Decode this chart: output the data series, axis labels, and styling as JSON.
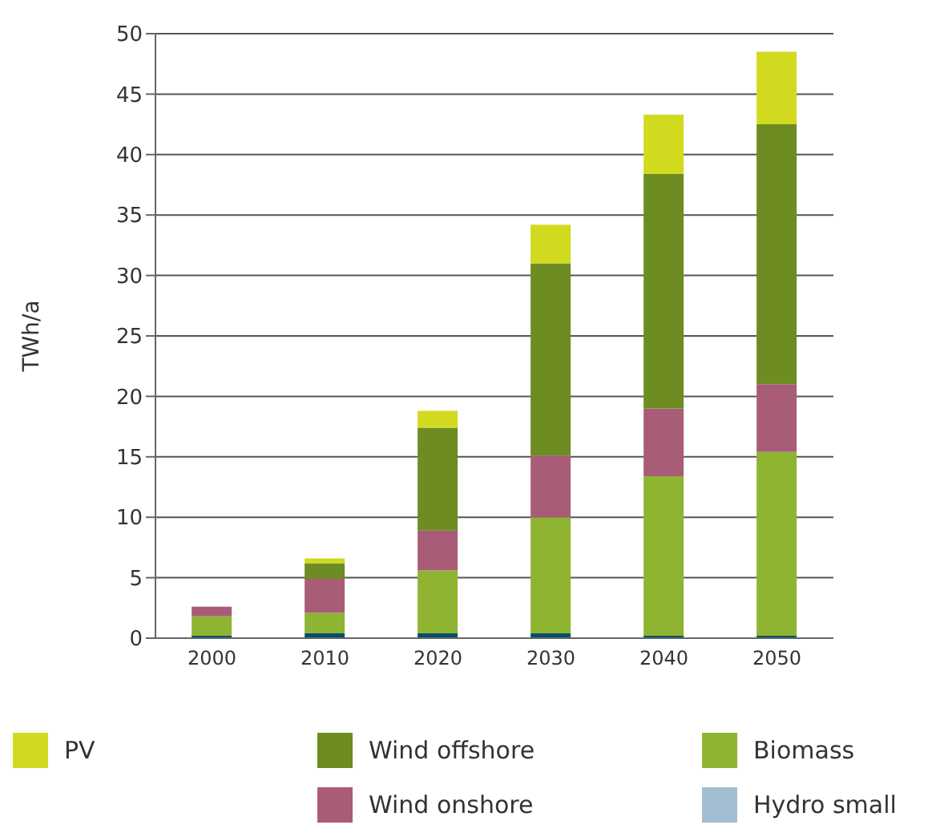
{
  "chart_data": {
    "type": "bar",
    "stacked": true,
    "ylabel": "TWh/a",
    "categories": [
      "2000",
      "2010",
      "2020",
      "2030",
      "2040",
      "2050"
    ],
    "series": [
      {
        "color": "#004f6e",
        "values": [
          0.2,
          0.4,
          0.4,
          0.4,
          0.2,
          0.2
        ]
      },
      {
        "name": "Biomass",
        "color": "#8fb431",
        "values": [
          1.6,
          1.7,
          5.2,
          9.6,
          13.2,
          15.2
        ]
      },
      {
        "name": "Wind onshore",
        "color": "#a95c77",
        "values": [
          0.8,
          2.8,
          3.3,
          5.1,
          5.6,
          5.6
        ]
      },
      {
        "name": "Wind offshore",
        "color": "#6d8c22",
        "values": [
          null,
          1.3,
          8.5,
          15.9,
          19.4,
          21.5
        ]
      },
      {
        "name": "PV",
        "color": "#d2da20",
        "values": [
          null,
          0.4,
          1.4,
          3.2,
          4.9,
          6.0
        ]
      },
      {
        "name": "Hydro small",
        "color": "#a3bdd1",
        "values": [
          null,
          null,
          null,
          null,
          null,
          null
        ]
      }
    ],
    "ylim": [
      0,
      50
    ],
    "yticks": [
      0,
      5,
      10,
      15,
      20,
      25,
      30,
      35,
      40,
      45,
      50
    ],
    "grid": "y",
    "legend": "bottom"
  }
}
